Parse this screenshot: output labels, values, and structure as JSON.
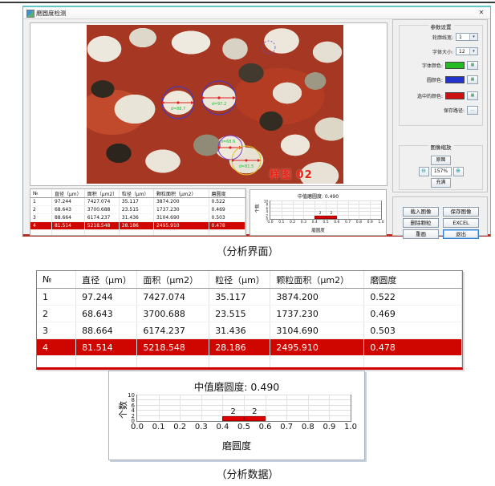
{
  "window": {
    "title": "磨圆度检测",
    "close_label": "✕"
  },
  "icons": {
    "dropdown": "▾",
    "picker": "▦",
    "browse": "…",
    "zoom_in": "⊕",
    "zoom_out": "⊖"
  },
  "photo": {
    "watermark": "样图 02",
    "annotations": [
      {
        "label": "d=88.7"
      },
      {
        "label": "d=97.2"
      },
      {
        "label": "d=68.6"
      },
      {
        "label": "d=81.5"
      }
    ]
  },
  "params": {
    "title": "参数设置",
    "line_width": {
      "label": "轮廓线宽:",
      "value": "1"
    },
    "font_size": {
      "label": "字体大小:",
      "value": "12"
    },
    "font_color": {
      "label": "字体颜色:",
      "color": "#22bb22"
    },
    "circle_color": {
      "label": "圆颜色:",
      "color": "#2233cc"
    },
    "selected_color": {
      "label": "选中的颜色:",
      "color": "#cc1111"
    },
    "save_path": {
      "label": "保存路径:"
    }
  },
  "zoom_box": {
    "title": "图像缩放",
    "original": "原图",
    "fit": "充满",
    "level": "157%"
  },
  "actions": {
    "load_image": "载入图像",
    "save_image": "保存图像",
    "delete_selected": "删除颗粒",
    "excel": "EXCEL",
    "redraw": "重画",
    "exit": "退出"
  },
  "table": {
    "headers": [
      "№",
      "直径（μm）",
      "面积（μm2）",
      "粒径（μm）",
      "颗粒面积（μm2）",
      "磨圆度"
    ],
    "rows": [
      [
        "1",
        "97.244",
        "7427.074",
        "35.117",
        "3874.200",
        "0.522"
      ],
      [
        "2",
        "68.643",
        "3700.688",
        "23.515",
        "1737.230",
        "0.469"
      ],
      [
        "3",
        "88.664",
        "6174.237",
        "31.436",
        "3104.690",
        "0.503"
      ],
      [
        "4",
        "81.514",
        "5218.548",
        "28.186",
        "2495.910",
        "0.478"
      ]
    ],
    "selected_index": 3,
    "selected_row_color": "#cf0600"
  },
  "chart_data": {
    "type": "bar",
    "title": "中值磨圆度: 0.490",
    "median_roundness": 0.49,
    "xlabel": "磨圆度",
    "ylabel": "个数",
    "xlim": [
      0,
      1
    ],
    "ylim": [
      0,
      10
    ],
    "x_ticks": [
      "0.0",
      "0.1",
      "0.2",
      "0.3",
      "0.4",
      "0.5",
      "0.6",
      "0.7",
      "0.8",
      "0.9",
      "1.0"
    ],
    "y_ticks": [
      0,
      2,
      4,
      6,
      8,
      10
    ],
    "bins": [
      {
        "x0": 0.4,
        "x1": 0.5,
        "count": 2
      },
      {
        "x0": 0.5,
        "x1": 0.6,
        "count": 2
      }
    ],
    "bar_color": "#e00000",
    "grid": true,
    "legend": "none"
  },
  "captions": {
    "interface": "（分析界面）",
    "data": "（分析数据）"
  }
}
